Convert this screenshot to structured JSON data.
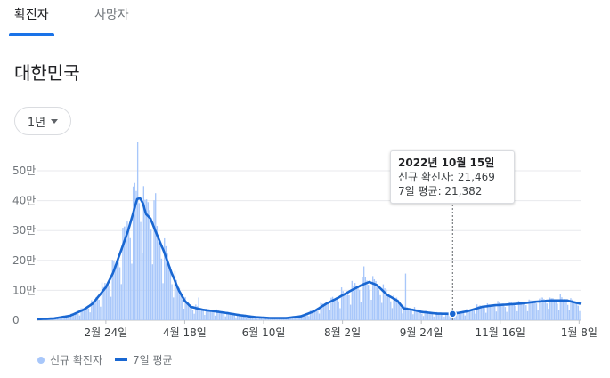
{
  "tabs": [
    {
      "label": "확진자",
      "active": true
    },
    {
      "label": "사망자",
      "active": false
    }
  ],
  "region": "대한민국",
  "period": "1년",
  "tooltip": {
    "date": "2022년 10월 15일",
    "cases_line": "신규 확진자: 21,469",
    "avg_line": "7일 평균: 21,382"
  },
  "legend": {
    "cases": "신규 확진자",
    "avg": "7일 평균"
  },
  "colors": {
    "bar": "#a8c7fa",
    "line": "#1967d2",
    "accent": "#1a73e8"
  },
  "chart_data": {
    "type": "bar",
    "x_start": "2022-01-09",
    "x_end": "2023-01-09",
    "ylim": [
      0,
      500000
    ],
    "ytick_labels": [
      "0",
      "10만",
      "20만",
      "30만",
      "40만",
      "50만"
    ],
    "xtick_labels": [
      "2월 24일",
      "4월 18일",
      "6월 10일",
      "8월 2일",
      "9월 24일",
      "11월 16일",
      "1월 8일"
    ],
    "xtick_dates": [
      "2022-02-24",
      "2022-04-18",
      "2022-06-10",
      "2022-08-02",
      "2022-09-24",
      "2022-11-16",
      "2023-01-08"
    ],
    "series": [
      {
        "name": "신규 확진자",
        "type": "bar"
      },
      {
        "name": "7일 평균",
        "type": "line"
      }
    ],
    "avg_points": [
      [
        "2022-01-09",
        3500
      ],
      [
        "2022-01-20",
        6000
      ],
      [
        "2022-01-31",
        15000
      ],
      [
        "2022-02-09",
        35000
      ],
      [
        "2022-02-15",
        55000
      ],
      [
        "2022-02-24",
        110000
      ],
      [
        "2022-03-01",
        160000
      ],
      [
        "2022-03-06",
        230000
      ],
      [
        "2022-03-11",
        300000
      ],
      [
        "2022-03-15",
        370000
      ],
      [
        "2022-03-17",
        405000
      ],
      [
        "2022-03-19",
        408000
      ],
      [
        "2022-03-21",
        390000
      ],
      [
        "2022-03-23",
        355000
      ],
      [
        "2022-03-26",
        340000
      ],
      [
        "2022-03-30",
        290000
      ],
      [
        "2022-04-04",
        230000
      ],
      [
        "2022-04-09",
        160000
      ],
      [
        "2022-04-14",
        100000
      ],
      [
        "2022-04-18",
        65000
      ],
      [
        "2022-04-22",
        45000
      ],
      [
        "2022-04-30",
        35000
      ],
      [
        "2022-05-08",
        30000
      ],
      [
        "2022-05-15",
        25000
      ],
      [
        "2022-05-25",
        17000
      ],
      [
        "2022-06-05",
        10000
      ],
      [
        "2022-06-15",
        7000
      ],
      [
        "2022-06-25",
        7000
      ],
      [
        "2022-07-05",
        13000
      ],
      [
        "2022-07-14",
        30000
      ],
      [
        "2022-07-22",
        55000
      ],
      [
        "2022-07-30",
        75000
      ],
      [
        "2022-08-08",
        100000
      ],
      [
        "2022-08-15",
        118000
      ],
      [
        "2022-08-20",
        128000
      ],
      [
        "2022-08-25",
        118000
      ],
      [
        "2022-09-01",
        85000
      ],
      [
        "2022-09-08",
        65000
      ],
      [
        "2022-09-12",
        40000
      ],
      [
        "2022-09-18",
        35000
      ],
      [
        "2022-09-24",
        28000
      ],
      [
        "2022-10-05",
        22000
      ],
      [
        "2022-10-15",
        21382
      ],
      [
        "2022-10-25",
        30000
      ],
      [
        "2022-11-04",
        45000
      ],
      [
        "2022-11-12",
        50000
      ],
      [
        "2022-11-19",
        52000
      ],
      [
        "2022-11-30",
        56000
      ],
      [
        "2022-12-10",
        62000
      ],
      [
        "2022-12-20",
        66000
      ],
      [
        "2022-12-31",
        66000
      ],
      [
        "2023-01-09",
        55000
      ]
    ],
    "daily_peaks": [
      [
        "2022-03-17",
        621000
      ],
      [
        "2022-03-24",
        395000
      ],
      [
        "2022-03-29",
        425000
      ],
      [
        "2022-04-27",
        76000
      ],
      [
        "2022-08-16",
        180000
      ],
      [
        "2022-09-13",
        156000
      ]
    ],
    "highlight": {
      "date": "2022-10-15",
      "cases": 21469,
      "avg": 21382
    }
  }
}
